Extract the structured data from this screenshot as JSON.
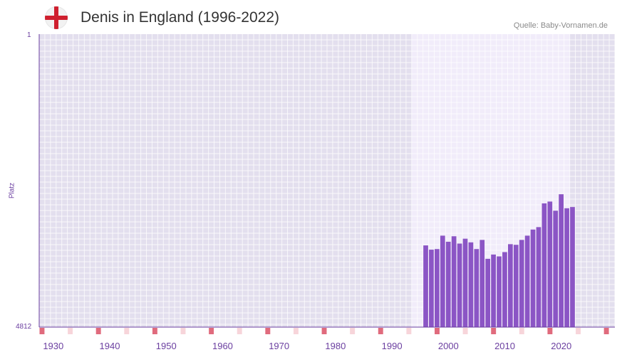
{
  "header": {
    "title": "Denis in England (1996-2022)",
    "source": "Quelle: Baby-Vornamen.de",
    "flag_icon": "england-flag-icon"
  },
  "chart_data": {
    "type": "bar",
    "title": "Denis in England (1996-2022)",
    "ylabel": "Platz",
    "xlabel": "",
    "y_inverted_rank": true,
    "ylim": [
      4812,
      1
    ],
    "y_ticks": [
      "1",
      "4812"
    ],
    "x_range": [
      1928,
      2029
    ],
    "x_ticks": [
      "1930",
      "1940",
      "1950",
      "1960",
      "1970",
      "1980",
      "1990",
      "2000",
      "2010",
      "2020"
    ],
    "highlight_range": [
      1994,
      2021
    ],
    "series": [
      {
        "name": "Denis",
        "color": "#8b55c5",
        "x": [
          1996,
          1997,
          1998,
          1999,
          2000,
          2001,
          2002,
          2003,
          2004,
          2005,
          2006,
          2007,
          2008,
          2009,
          2010,
          2011,
          2012,
          2013,
          2014,
          2015,
          2016,
          2017,
          2018,
          2019,
          2020,
          2021,
          2022
        ],
        "values": [
          3470,
          3540,
          3530,
          3310,
          3410,
          3320,
          3440,
          3360,
          3420,
          3530,
          3380,
          3690,
          3620,
          3650,
          3580,
          3450,
          3460,
          3380,
          3310,
          3210,
          3170,
          2780,
          2750,
          2900,
          2630,
          2860,
          2840
        ]
      }
    ]
  },
  "colors": {
    "bar": "#8b55c5",
    "plot_bg": "#e3dfee",
    "highlight_bg": "#f1ecfa",
    "axis": "#6b3fa0",
    "decade_marker": "#e06b7d",
    "half_decade_marker": "#f7d5da"
  }
}
